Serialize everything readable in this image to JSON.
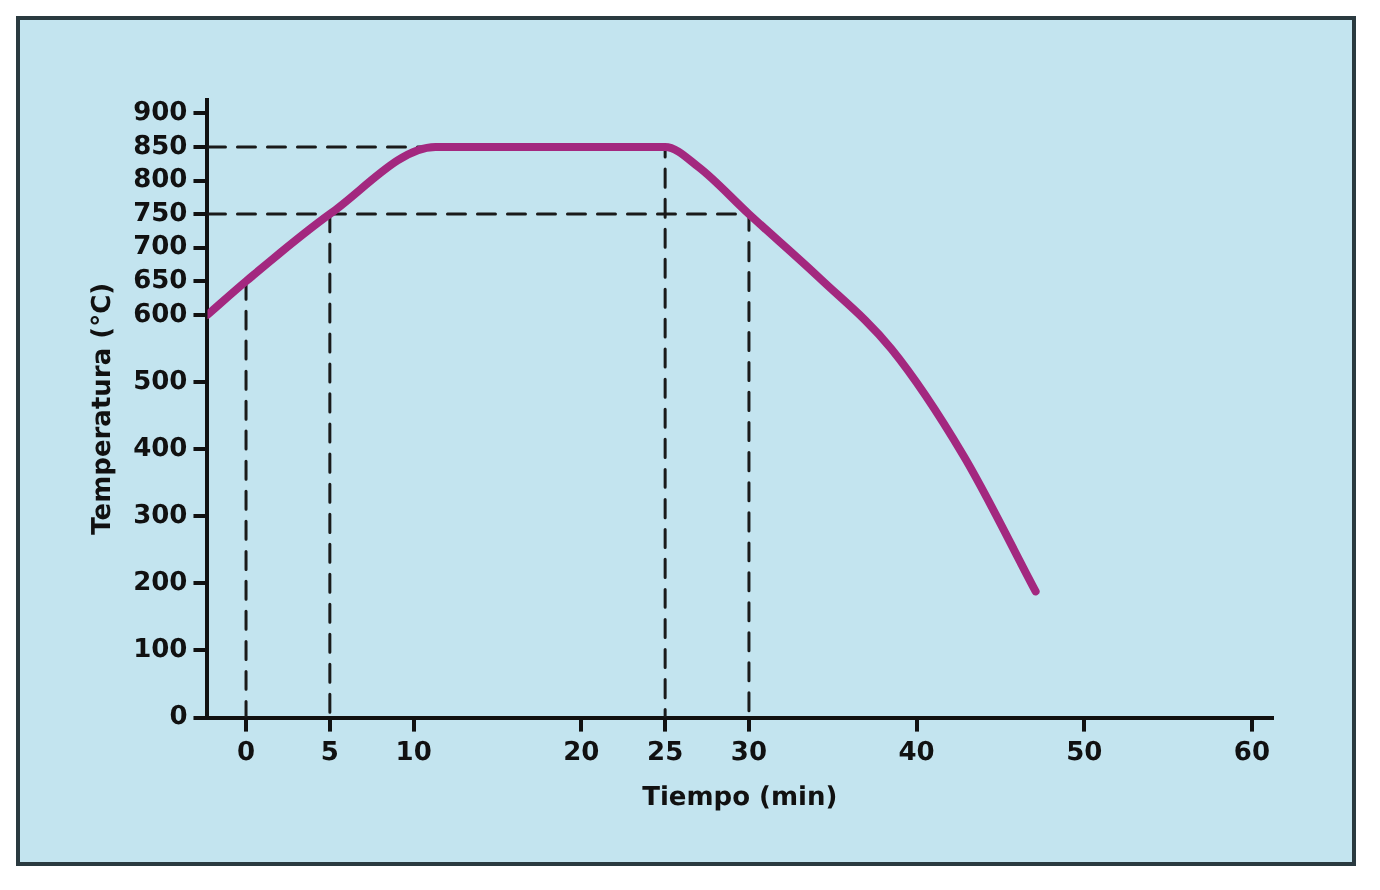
{
  "chart_data": {
    "type": "line",
    "xlabel": "Tiempo (min)",
    "ylabel": "Temperatura (°C)",
    "xlim": [
      -2.3,
      61.2
    ],
    "ylim": [
      0,
      920
    ],
    "xticks": [
      0,
      5,
      10,
      20,
      25,
      30,
      40,
      50,
      60
    ],
    "yticks": [
      0,
      100,
      200,
      300,
      400,
      500,
      600,
      650,
      700,
      750,
      800,
      850,
      900
    ],
    "grid": false,
    "legend": false,
    "marker": "none",
    "series": [
      {
        "color": "#a3287f",
        "x": [
          -2.3,
          0,
          5,
          11.3,
          25,
          27,
          30,
          34.2,
          38.5,
          42.8,
          47.1
        ],
        "values": [
          600,
          650,
          750,
          850,
          850,
          820,
          750,
          655,
          549,
          390,
          188
        ]
      },
      {
        "color": "#1a1a1a",
        "line_style": "dashed",
        "x": [
          -2.3,
          25,
          25
        ],
        "values": [
          850,
          850,
          0
        ]
      },
      {
        "color": "#1a1a1a",
        "line_style": "dashed",
        "x": [
          -2.3,
          30,
          30
        ],
        "values": [
          750,
          750,
          0
        ]
      },
      {
        "color": "#1a1a1a",
        "line_style": "dashed",
        "x": [
          0,
          0
        ],
        "values": [
          650,
          0
        ]
      },
      {
        "color": "#1a1a1a",
        "line_style": "dashed",
        "x": [
          5,
          5
        ],
        "values": [
          750,
          0
        ]
      }
    ]
  }
}
